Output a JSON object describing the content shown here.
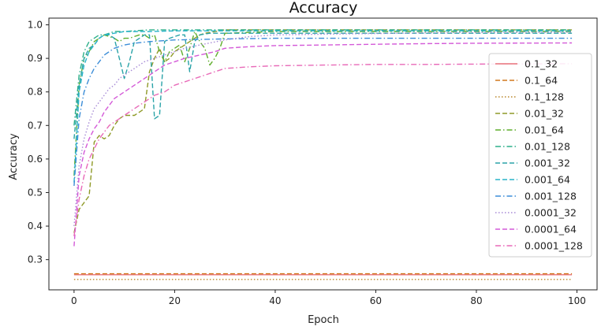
{
  "chart_data": {
    "type": "line",
    "title": "Accuracy",
    "xlabel": "Epoch",
    "ylabel": "Accuracy",
    "xlim": [
      -5,
      104
    ],
    "ylim": [
      0.21,
      1.02
    ],
    "xticks": [
      0,
      20,
      40,
      60,
      80,
      100
    ],
    "yticks": [
      0.3,
      0.4,
      0.5,
      0.6,
      0.7,
      0.8,
      0.9,
      1.0
    ],
    "ytick_labels": [
      "0.3",
      "0.4",
      "0.5",
      "0.6",
      "0.7",
      "0.8",
      "0.9",
      "1.0"
    ],
    "grid": false,
    "legend_position": "right",
    "series": [
      {
        "name": "0.1_32",
        "color": "#e8707a",
        "dash": "solid",
        "points": [
          [
            0,
            0.255
          ],
          [
            99,
            0.255
          ]
        ]
      },
      {
        "name": "0.1_64",
        "color": "#d2781e",
        "dash": "dashed",
        "points": [
          [
            0,
            0.258
          ],
          [
            99,
            0.258
          ]
        ]
      },
      {
        "name": "0.1_128",
        "color": "#b8862a",
        "dash": "dotted",
        "points": [
          [
            0,
            0.241
          ],
          [
            99,
            0.241
          ]
        ]
      },
      {
        "name": "0.01_32",
        "color": "#8f9a28",
        "dash": "dashed",
        "points": [
          [
            0,
            0.38
          ],
          [
            1,
            0.45
          ],
          [
            2,
            0.47
          ],
          [
            3,
            0.49
          ],
          [
            4,
            0.65
          ],
          [
            5,
            0.67
          ],
          [
            6,
            0.66
          ],
          [
            7,
            0.67
          ],
          [
            8,
            0.7
          ],
          [
            9,
            0.72
          ],
          [
            10,
            0.73
          ],
          [
            11,
            0.73
          ],
          [
            12,
            0.73
          ],
          [
            13,
            0.74
          ],
          [
            14,
            0.75
          ],
          [
            15,
            0.86
          ],
          [
            16,
            0.9
          ],
          [
            17,
            0.93
          ],
          [
            18,
            0.89
          ],
          [
            19,
            0.9
          ],
          [
            20,
            0.92
          ],
          [
            21,
            0.93
          ],
          [
            22,
            0.94
          ],
          [
            23,
            0.95
          ],
          [
            24,
            0.96
          ],
          [
            25,
            0.97
          ],
          [
            26,
            0.975
          ],
          [
            28,
            0.98
          ],
          [
            30,
            0.985
          ],
          [
            40,
            0.985
          ],
          [
            60,
            0.985
          ],
          [
            80,
            0.985
          ],
          [
            99,
            0.985
          ]
        ]
      },
      {
        "name": "0.01_64",
        "color": "#5fae2c",
        "dash": "dashdot",
        "points": [
          [
            0,
            0.55
          ],
          [
            1,
            0.82
          ],
          [
            2,
            0.9
          ],
          [
            3,
            0.92
          ],
          [
            4,
            0.95
          ],
          [
            5,
            0.96
          ],
          [
            6,
            0.97
          ],
          [
            7,
            0.965
          ],
          [
            8,
            0.96
          ],
          [
            9,
            0.95
          ],
          [
            10,
            0.96
          ],
          [
            11,
            0.96
          ],
          [
            12,
            0.965
          ],
          [
            13,
            0.97
          ],
          [
            14,
            0.97
          ],
          [
            15,
            0.96
          ],
          [
            16,
            0.97
          ],
          [
            17,
            0.92
          ],
          [
            18,
            0.89
          ],
          [
            19,
            0.92
          ],
          [
            20,
            0.93
          ],
          [
            21,
            0.94
          ],
          [
            22,
            0.89
          ],
          [
            23,
            0.93
          ],
          [
            24,
            0.98
          ],
          [
            25,
            0.95
          ],
          [
            26,
            0.93
          ],
          [
            27,
            0.88
          ],
          [
            28,
            0.9
          ],
          [
            29,
            0.93
          ],
          [
            30,
            0.975
          ],
          [
            40,
            0.98
          ],
          [
            60,
            0.98
          ],
          [
            80,
            0.98
          ],
          [
            99,
            0.98
          ]
        ]
      },
      {
        "name": "0.01_128",
        "color": "#2db08a",
        "dash": "dashdot",
        "points": [
          [
            0,
            0.7
          ],
          [
            1,
            0.85
          ],
          [
            2,
            0.92
          ],
          [
            3,
            0.95
          ],
          [
            4,
            0.96
          ],
          [
            5,
            0.97
          ],
          [
            6,
            0.97
          ],
          [
            7,
            0.975
          ],
          [
            8,
            0.98
          ],
          [
            10,
            0.98
          ],
          [
            15,
            0.985
          ],
          [
            20,
            0.985
          ],
          [
            40,
            0.985
          ],
          [
            60,
            0.985
          ],
          [
            80,
            0.985
          ],
          [
            99,
            0.985
          ]
        ]
      },
      {
        "name": "0.001_32",
        "color": "#2aa3a8",
        "dash": "dashed",
        "points": [
          [
            0,
            0.66
          ],
          [
            1,
            0.82
          ],
          [
            2,
            0.9
          ],
          [
            3,
            0.93
          ],
          [
            4,
            0.94
          ],
          [
            5,
            0.96
          ],
          [
            6,
            0.97
          ],
          [
            7,
            0.97
          ],
          [
            8,
            0.96
          ],
          [
            9,
            0.9
          ],
          [
            10,
            0.84
          ],
          [
            11,
            0.89
          ],
          [
            12,
            0.95
          ],
          [
            13,
            0.96
          ],
          [
            14,
            0.97
          ],
          [
            15,
            0.97
          ],
          [
            16,
            0.72
          ],
          [
            17,
            0.73
          ],
          [
            18,
            0.95
          ],
          [
            19,
            0.96
          ],
          [
            20,
            0.965
          ],
          [
            21,
            0.97
          ],
          [
            22,
            0.97
          ],
          [
            23,
            0.86
          ],
          [
            24,
            0.95
          ],
          [
            25,
            0.97
          ],
          [
            27,
            0.975
          ],
          [
            30,
            0.975
          ],
          [
            40,
            0.975
          ],
          [
            60,
            0.975
          ],
          [
            80,
            0.975
          ],
          [
            99,
            0.975
          ]
        ]
      },
      {
        "name": "0.001_64",
        "color": "#29b3c9",
        "dash": "dashed",
        "points": [
          [
            0,
            0.53
          ],
          [
            1,
            0.8
          ],
          [
            2,
            0.88
          ],
          [
            3,
            0.92
          ],
          [
            4,
            0.94
          ],
          [
            5,
            0.96
          ],
          [
            6,
            0.97
          ],
          [
            8,
            0.975
          ],
          [
            10,
            0.98
          ],
          [
            15,
            0.98
          ],
          [
            20,
            0.982
          ],
          [
            40,
            0.982
          ],
          [
            60,
            0.982
          ],
          [
            80,
            0.982
          ],
          [
            99,
            0.982
          ]
        ]
      },
      {
        "name": "0.001_128",
        "color": "#3d8ed8",
        "dash": "dashdot",
        "points": [
          [
            0,
            0.52
          ],
          [
            1,
            0.72
          ],
          [
            2,
            0.8
          ],
          [
            3,
            0.84
          ],
          [
            4,
            0.87
          ],
          [
            5,
            0.89
          ],
          [
            6,
            0.91
          ],
          [
            7,
            0.92
          ],
          [
            8,
            0.93
          ],
          [
            10,
            0.94
          ],
          [
            12,
            0.945
          ],
          [
            15,
            0.95
          ],
          [
            20,
            0.955
          ],
          [
            30,
            0.958
          ],
          [
            40,
            0.96
          ],
          [
            60,
            0.96
          ],
          [
            80,
            0.96
          ],
          [
            99,
            0.96
          ]
        ]
      },
      {
        "name": "0.0001_32",
        "color": "#a78ad6",
        "dash": "dotted",
        "points": [
          [
            0,
            0.4
          ],
          [
            1,
            0.58
          ],
          [
            2,
            0.66
          ],
          [
            3,
            0.71
          ],
          [
            4,
            0.75
          ],
          [
            5,
            0.77
          ],
          [
            6,
            0.79
          ],
          [
            7,
            0.81
          ],
          [
            8,
            0.82
          ],
          [
            9,
            0.84
          ],
          [
            10,
            0.85
          ],
          [
            12,
            0.87
          ],
          [
            14,
            0.89
          ],
          [
            16,
            0.9
          ],
          [
            18,
            0.91
          ],
          [
            20,
            0.92
          ],
          [
            22,
            0.93
          ],
          [
            25,
            0.94
          ],
          [
            30,
            0.955
          ],
          [
            35,
            0.965
          ],
          [
            40,
            0.97
          ],
          [
            50,
            0.972
          ],
          [
            60,
            0.974
          ],
          [
            70,
            0.976
          ],
          [
            80,
            0.977
          ],
          [
            99,
            0.978
          ]
        ]
      },
      {
        "name": "0.0001_64",
        "color": "#d45ad8",
        "dash": "dashed",
        "points": [
          [
            0,
            0.34
          ],
          [
            1,
            0.55
          ],
          [
            2,
            0.62
          ],
          [
            3,
            0.66
          ],
          [
            4,
            0.69
          ],
          [
            5,
            0.71
          ],
          [
            6,
            0.74
          ],
          [
            7,
            0.76
          ],
          [
            8,
            0.78
          ],
          [
            10,
            0.8
          ],
          [
            12,
            0.82
          ],
          [
            14,
            0.84
          ],
          [
            16,
            0.86
          ],
          [
            18,
            0.88
          ],
          [
            20,
            0.89
          ],
          [
            22,
            0.9
          ],
          [
            25,
            0.91
          ],
          [
            28,
            0.92
          ],
          [
            30,
            0.93
          ],
          [
            35,
            0.935
          ],
          [
            40,
            0.938
          ],
          [
            50,
            0.94
          ],
          [
            60,
            0.942
          ],
          [
            70,
            0.944
          ],
          [
            80,
            0.945
          ],
          [
            99,
            0.946
          ]
        ]
      },
      {
        "name": "0.0001_128",
        "color": "#e86ab8",
        "dash": "dashdot",
        "points": [
          [
            0,
            0.37
          ],
          [
            1,
            0.48
          ],
          [
            2,
            0.55
          ],
          [
            3,
            0.6
          ],
          [
            4,
            0.63
          ],
          [
            5,
            0.66
          ],
          [
            6,
            0.68
          ],
          [
            7,
            0.7
          ],
          [
            8,
            0.71
          ],
          [
            10,
            0.73
          ],
          [
            12,
            0.75
          ],
          [
            14,
            0.77
          ],
          [
            16,
            0.79
          ],
          [
            18,
            0.8
          ],
          [
            20,
            0.82
          ],
          [
            22,
            0.83
          ],
          [
            24,
            0.84
          ],
          [
            26,
            0.85
          ],
          [
            28,
            0.86
          ],
          [
            30,
            0.87
          ],
          [
            35,
            0.875
          ],
          [
            40,
            0.878
          ],
          [
            50,
            0.88
          ],
          [
            60,
            0.882
          ],
          [
            70,
            0.882
          ],
          [
            80,
            0.883
          ],
          [
            99,
            0.884
          ]
        ]
      }
    ]
  }
}
